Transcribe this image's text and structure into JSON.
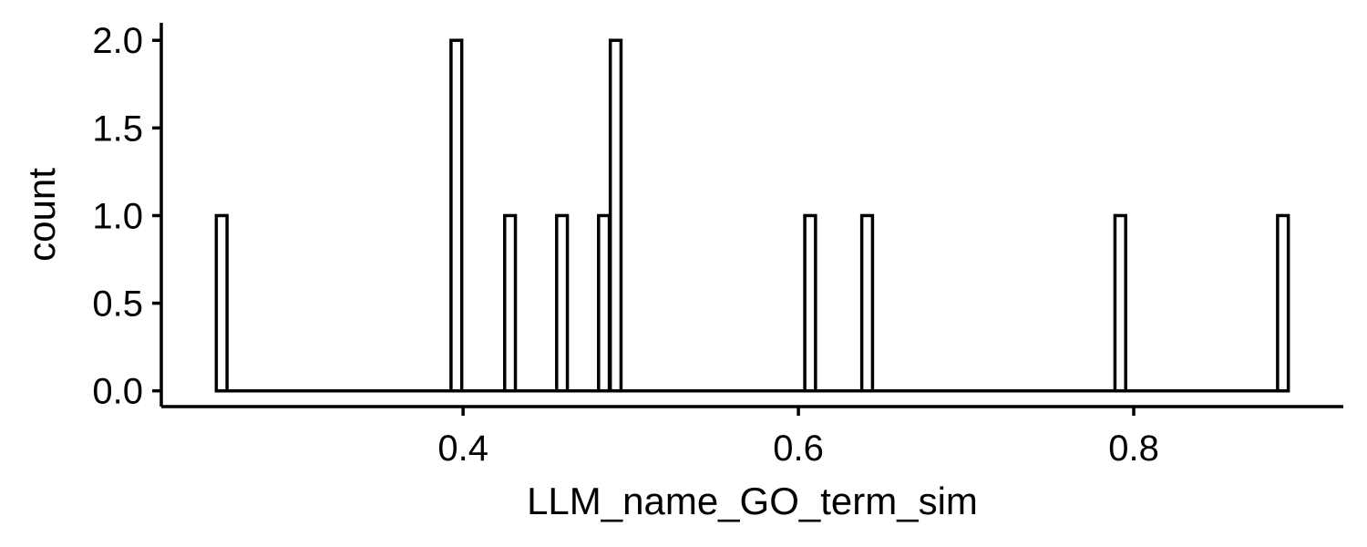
{
  "chart_data": {
    "type": "bar",
    "xlabel": "LLM_name_GO_term_sim",
    "ylabel": "count",
    "xlim": [
      0.22,
      0.925
    ],
    "ylim": [
      -0.09,
      2.1
    ],
    "x_ticks": [
      0.4,
      0.6,
      0.8
    ],
    "x_tick_labels": [
      "0.4",
      "0.6",
      "0.8"
    ],
    "y_ticks": [
      0,
      0.5,
      1,
      1.5,
      2
    ],
    "y_tick_labels": [
      "0.0",
      "0.5",
      "1.0",
      "1.5",
      "2.0"
    ],
    "bin_range": [
      0.253,
      0.892
    ],
    "bin_width": 0.0064,
    "bars": [
      {
        "x": 0.256,
        "count": 1
      },
      {
        "x": 0.396,
        "count": 2
      },
      {
        "x": 0.428,
        "count": 1
      },
      {
        "x": 0.459,
        "count": 1
      },
      {
        "x": 0.484,
        "count": 1
      },
      {
        "x": 0.491,
        "count": 2
      },
      {
        "x": 0.607,
        "count": 1
      },
      {
        "x": 0.641,
        "count": 1
      },
      {
        "x": 0.792,
        "count": 1
      },
      {
        "x": 0.889,
        "count": 1
      }
    ],
    "fill_color": "#ffffff",
    "outline_color": "#000000",
    "grid": false
  }
}
